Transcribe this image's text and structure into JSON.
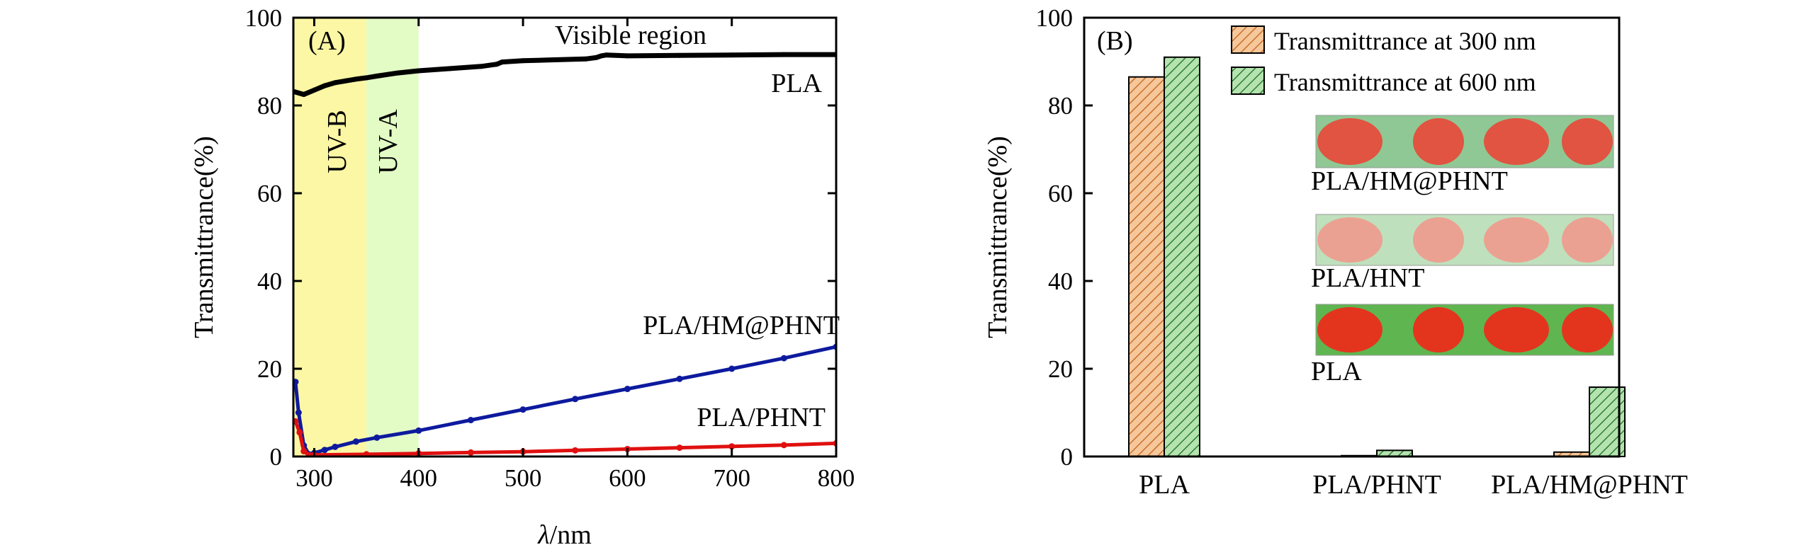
{
  "chart_data": [
    {
      "panel_label": "(A)",
      "type": "line",
      "xlabel_symbol": "λ",
      "xlabel_unit": "/nm",
      "ylabel": "Transmittrance(%)",
      "xlim": [
        280,
        800
      ],
      "ylim": [
        0,
        100
      ],
      "xticks": [
        300,
        400,
        500,
        600,
        700,
        800
      ],
      "yticks": [
        0,
        20,
        40,
        60,
        80,
        100
      ],
      "regions": [
        {
          "label": "UV-B",
          "x_range": [
            280,
            350
          ],
          "color": "#fbf7a4"
        },
        {
          "label": "UV-A",
          "x_range": [
            350,
            400
          ],
          "color": "#e3fcc5"
        }
      ],
      "region_text": "Visible region",
      "series": [
        {
          "name": "PLA",
          "color": "#000000",
          "x": [
            280,
            290,
            300,
            310,
            320,
            330,
            340,
            350,
            360,
            380,
            400,
            430,
            460,
            475,
            480,
            500,
            530,
            560,
            570,
            575,
            580,
            600,
            650,
            700,
            750,
            800
          ],
          "y": [
            83.2,
            82.5,
            83.5,
            84.5,
            85.2,
            85.6,
            86.0,
            86.3,
            86.7,
            87.4,
            87.9,
            88.4,
            88.9,
            89.4,
            89.9,
            90.2,
            90.4,
            90.6,
            90.9,
            91.3,
            91.5,
            91.3,
            91.4,
            91.5,
            91.6,
            91.6
          ]
        },
        {
          "name": "PLA/HM@PHNT",
          "color": "#0d1a9e",
          "x": [
            282,
            285,
            290,
            295,
            300,
            310,
            320,
            340,
            360,
            400,
            450,
            500,
            550,
            600,
            650,
            700,
            750,
            800
          ],
          "y": [
            17,
            10,
            2.5,
            0.5,
            0.8,
            1.5,
            2.2,
            3.4,
            4.3,
            5.9,
            8.3,
            10.7,
            13.1,
            15.4,
            17.7,
            20.0,
            22.4,
            25.0
          ]
        },
        {
          "name": "PLA/PHNT",
          "color": "#e01010",
          "x": [
            282,
            286,
            290,
            295,
            300,
            350,
            400,
            450,
            500,
            550,
            600,
            650,
            700,
            750,
            800
          ],
          "y": [
            8,
            5.5,
            1.2,
            0.3,
            0.35,
            0.5,
            0.7,
            0.9,
            1.1,
            1.4,
            1.7,
            2.0,
            2.3,
            2.6,
            3.0
          ]
        }
      ]
    },
    {
      "panel_label": "(B)",
      "type": "bar",
      "ylabel": "Transmittrance(%)",
      "ylim": [
        0,
        100
      ],
      "yticks": [
        0,
        20,
        40,
        60,
        80,
        100
      ],
      "categories": [
        "PLA",
        "PLA/PHNT",
        "PLA/HM@PHNT"
      ],
      "series": [
        {
          "name": "Transmittrance at 300 nm",
          "values": [
            86.5,
            0.2,
            1.0
          ],
          "color": "#f6c79a",
          "hatch_color": "#c8702b"
        },
        {
          "name": "Transmittrance at 600 nm",
          "values": [
            91.0,
            1.4,
            15.8
          ],
          "color": "#b5e3b0",
          "hatch_color": "#2e7d32"
        }
      ],
      "legend_position": "top-right",
      "insets": [
        {
          "label": "PLA/HM@PHNT",
          "tone": "vivid-on-green"
        },
        {
          "label": "PLA/HNT",
          "tone": "faded"
        },
        {
          "label": "PLA",
          "tone": "vivid"
        }
      ]
    }
  ]
}
